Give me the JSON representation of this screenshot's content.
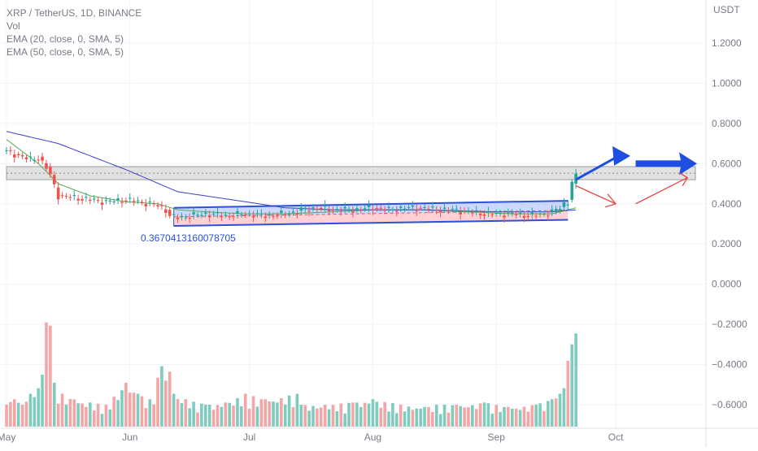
{
  "legend": {
    "symbol_line": "XRP / TetherUS, 1D, BINANCE",
    "volume_label": "Vol",
    "ema_fast_label": "EMA (20, close, 0, SMA, 5)",
    "ema_slow_label": "EMA (50, close, 0, SMA, 5)"
  },
  "annotation_value": "0.3670413160078705",
  "colors": {
    "up": "#26a69a",
    "down": "#ef5350",
    "volume_up": "#7fcbbd",
    "volume_down": "#f2a6a6",
    "ema_fast": "#4caf50",
    "ema_slow": "#3f3fc7",
    "channel_blue": "#2b50d9",
    "arrow_blue": "#1e4fe0",
    "arrow_red": "#e53935",
    "resistance_zone": "#c9c9c9",
    "axis_text": "#787b86",
    "grid": "#f0f3fa"
  },
  "chart_data": {
    "type": "candlestick",
    "y_axis": {
      "unit_label": "USDT",
      "ticks": [
        "1.2000",
        "1.0000",
        "0.8000",
        "0.6000",
        "0.4000",
        "0.2000",
        "0.0000",
        "−0.2000",
        "−0.4000",
        "−0.6000"
      ],
      "tick_values": [
        1.2,
        1.0,
        0.8,
        0.6,
        0.4,
        0.2,
        0.0,
        -0.2,
        -0.4,
        -0.6
      ],
      "range": [
        -0.7,
        1.35
      ]
    },
    "x_axis": {
      "labels": [
        "May",
        "Jun",
        "Jul",
        "Aug",
        "Sep",
        "Oct"
      ],
      "label_dates": [
        "2023-05-01",
        "2023-06-01",
        "2023-07-01",
        "2023-08-01",
        "2023-09-01",
        "2023-10-01"
      ],
      "range": [
        "2023-05-01",
        "2023-10-21"
      ]
    },
    "grid": true,
    "price_points": {
      "dates": [
        "2023-05-01",
        "2023-05-04",
        "2023-05-07",
        "2023-05-09",
        "2023-05-11",
        "2023-05-12",
        "2023-05-14",
        "2023-05-18",
        "2023-05-22",
        "2023-05-26",
        "2023-05-31",
        "2023-06-03",
        "2023-06-06",
        "2023-06-08",
        "2023-06-10",
        "2023-06-11",
        "2023-06-13",
        "2023-06-16",
        "2023-06-20",
        "2023-06-25",
        "2023-06-30",
        "2023-07-05",
        "2023-07-10",
        "2023-07-13",
        "2023-07-14",
        "2023-07-18",
        "2023-07-22",
        "2023-07-27",
        "2023-08-01",
        "2023-08-05",
        "2023-08-09",
        "2023-08-13",
        "2023-08-17",
        "2023-08-21",
        "2023-08-25",
        "2023-08-29",
        "2023-09-01",
        "2023-09-05",
        "2023-09-09",
        "2023-09-13",
        "2023-09-15",
        "2023-09-17",
        "2023-09-18",
        "2023-09-19",
        "2023-09-20",
        "2023-09-21"
      ],
      "close": [
        0.66,
        0.64,
        0.62,
        0.63,
        0.58,
        0.54,
        0.44,
        0.43,
        0.42,
        0.41,
        0.42,
        0.41,
        0.4,
        0.39,
        0.37,
        0.34,
        0.33,
        0.34,
        0.35,
        0.34,
        0.35,
        0.34,
        0.35,
        0.36,
        0.37,
        0.38,
        0.37,
        0.37,
        0.38,
        0.37,
        0.38,
        0.38,
        0.37,
        0.37,
        0.36,
        0.35,
        0.35,
        0.35,
        0.34,
        0.35,
        0.36,
        0.38,
        0.4,
        0.41,
        0.51,
        0.55
      ]
    },
    "series": [
      {
        "name": "EMA (20, close, 0, SMA, 5)",
        "dates": [
          "2023-05-01",
          "2023-05-09",
          "2023-05-14",
          "2023-05-22",
          "2023-05-31",
          "2023-06-08",
          "2023-06-13",
          "2023-06-20",
          "2023-06-30",
          "2023-07-10",
          "2023-07-22",
          "2023-08-01",
          "2023-08-13",
          "2023-08-25",
          "2023-09-05",
          "2023-09-15",
          "2023-09-21"
        ],
        "values": [
          0.72,
          0.6,
          0.5,
          0.44,
          0.41,
          0.4,
          0.37,
          0.36,
          0.35,
          0.35,
          0.36,
          0.37,
          0.37,
          0.36,
          0.35,
          0.35,
          0.38
        ]
      },
      {
        "name": "EMA (50, close, 0, SMA, 5)",
        "dates": [
          "2023-05-01",
          "2023-05-14",
          "2023-05-31",
          "2023-06-13",
          "2023-06-30",
          "2023-07-10",
          "2023-07-22",
          "2023-08-01",
          "2023-08-13",
          "2023-09-01",
          "2023-09-15",
          "2023-09-21"
        ],
        "values": [
          0.76,
          0.7,
          0.57,
          0.46,
          0.41,
          0.38,
          0.37,
          0.37,
          0.37,
          0.36,
          0.36,
          0.37
        ]
      }
    ],
    "volume": {
      "label": "Vol",
      "dates": [
        "2023-05-01",
        "2023-05-03",
        "2023-05-05",
        "2023-05-07",
        "2023-05-09",
        "2023-05-11",
        "2023-05-12",
        "2023-05-13",
        "2023-05-15",
        "2023-05-18",
        "2023-05-22",
        "2023-05-26",
        "2023-05-31",
        "2023-06-03",
        "2023-06-06",
        "2023-06-09",
        "2023-06-10",
        "2023-06-11",
        "2023-06-12",
        "2023-06-15",
        "2023-06-20",
        "2023-06-25",
        "2023-06-30",
        "2023-07-05",
        "2023-07-13",
        "2023-07-14",
        "2023-07-20",
        "2023-07-27",
        "2023-08-01",
        "2023-08-08",
        "2023-08-14",
        "2023-08-17",
        "2023-08-22",
        "2023-08-29",
        "2023-09-04",
        "2023-09-11",
        "2023-09-15",
        "2023-09-17",
        "2023-09-18",
        "2023-09-19",
        "2023-09-20",
        "2023-09-21"
      ],
      "relative_heights": [
        0.2,
        0.25,
        0.2,
        0.3,
        0.35,
        0.95,
        0.92,
        0.4,
        0.3,
        0.25,
        0.22,
        0.2,
        0.4,
        0.3,
        0.25,
        0.55,
        0.42,
        0.5,
        0.3,
        0.25,
        0.2,
        0.22,
        0.3,
        0.25,
        0.3,
        0.2,
        0.2,
        0.22,
        0.25,
        0.2,
        0.18,
        0.2,
        0.2,
        0.22,
        0.18,
        0.2,
        0.25,
        0.3,
        0.35,
        0.6,
        0.75,
        0.85
      ]
    },
    "drawings": [
      {
        "kind": "parallel_channel",
        "from": "2023-06-12",
        "to": "2023-09-19",
        "lower_start": 0.29,
        "upper_start": 0.38,
        "lower_end": 0.32,
        "upper_end": 0.415
      },
      {
        "kind": "resistance_zone",
        "from": "2023-05-01",
        "to": "2023-10-21",
        "bottom": 0.52,
        "top": 0.585
      },
      {
        "kind": "projection_arrow_blue",
        "dates": [
          "2023-09-21",
          "2023-10-01",
          "2023-10-06",
          "2023-10-21"
        ],
        "values": [
          0.52,
          0.63,
          0.6,
          0.6
        ]
      },
      {
        "kind": "projection_arrow_red",
        "dates": [
          "2023-09-21",
          "2023-10-01",
          "2023-10-06",
          "2023-10-19"
        ],
        "values": [
          0.49,
          0.4,
          0.4,
          0.53
        ]
      }
    ]
  }
}
